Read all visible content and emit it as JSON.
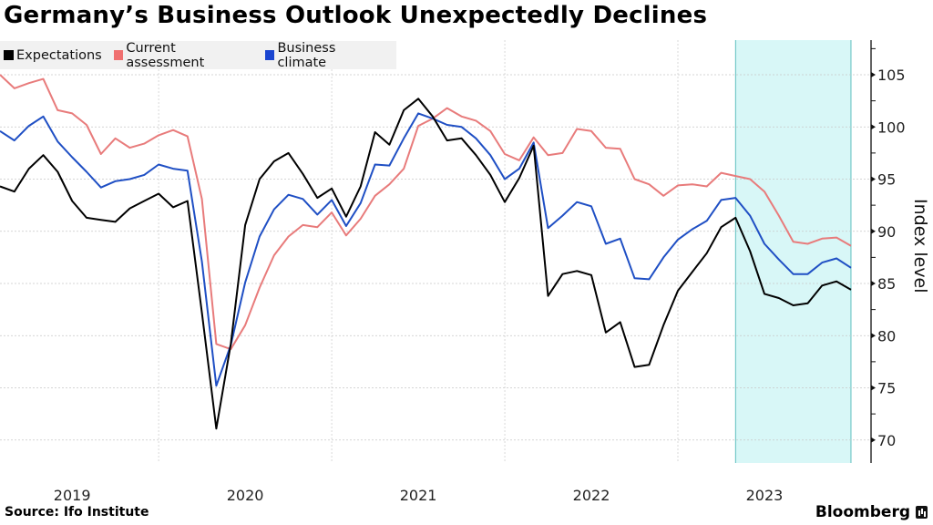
{
  "title": "Germany’s Business Outlook Unexpectedly Declines",
  "source": "Source: Ifo Institute",
  "brand": "Bloomberg",
  "chart_data": {
    "type": "line",
    "title": "Germany’s Business Outlook Unexpectedly Declines",
    "xlabel": "",
    "ylabel": "Index level",
    "x_start": "2019-01",
    "x_end": "2023-12",
    "frequency": "monthly",
    "x_tick_labels": [
      "2019",
      "2020",
      "2021",
      "2022",
      "2023"
    ],
    "y_ticks": [
      70,
      75,
      80,
      85,
      90,
      95,
      100,
      105
    ],
    "ylim": [
      68,
      108.3
    ],
    "grid": true,
    "legend_position": "top-left",
    "y_axis_side": "right",
    "highlight": {
      "from": "2023-04",
      "to": "2023-12",
      "color": "#d8f7f7"
    },
    "series": [
      {
        "name": "Expectations",
        "color": "#000000",
        "values": [
          94.3,
          93.8,
          96.0,
          97.3,
          95.7,
          92.9,
          91.3,
          91.1,
          90.9,
          92.2,
          92.9,
          93.6,
          92.3,
          92.9,
          82.2,
          71.1,
          79.2,
          90.6,
          95.0,
          96.7,
          97.5,
          95.5,
          93.2,
          94.1,
          91.4,
          94.3,
          99.5,
          98.3,
          101.6,
          102.7,
          101.0,
          98.7,
          98.9,
          97.3,
          95.4,
          92.8,
          95.1,
          98.2,
          83.8,
          85.9,
          86.2,
          85.8,
          80.3,
          81.3,
          77.0,
          77.2,
          81.0,
          84.3,
          86.1,
          87.9,
          90.4,
          91.3,
          88.1,
          84.0,
          83.6,
          82.9,
          83.1,
          84.8,
          85.2,
          84.4
        ]
      },
      {
        "name": "Current assessment",
        "color": "#e87b7b",
        "values": [
          105.0,
          103.7,
          104.2,
          104.6,
          101.6,
          101.3,
          100.2,
          97.4,
          98.9,
          98.0,
          98.4,
          99.2,
          99.7,
          99.1,
          93.1,
          79.2,
          78.7,
          81.0,
          84.6,
          87.7,
          89.5,
          90.6,
          90.4,
          91.8,
          89.6,
          91.2,
          93.4,
          94.5,
          96.0,
          100.1,
          100.8,
          101.8,
          101.0,
          100.6,
          99.6,
          97.4,
          96.8,
          99.0,
          97.3,
          97.5,
          99.8,
          99.6,
          98.0,
          97.9,
          95.0,
          94.5,
          93.4,
          94.4,
          94.5,
          94.3,
          95.6,
          95.3,
          95.0,
          93.8,
          91.5,
          89.0,
          88.8,
          89.3,
          89.4,
          88.6
        ]
      },
      {
        "name": "Business climate",
        "color": "#1f4fc4",
        "values": [
          99.6,
          98.7,
          100.1,
          101.0,
          98.6,
          97.1,
          95.7,
          94.2,
          94.8,
          95.0,
          95.4,
          96.4,
          96.0,
          95.8,
          87.1,
          75.2,
          79.1,
          85.1,
          89.5,
          92.1,
          93.5,
          93.1,
          91.6,
          93.0,
          90.5,
          92.7,
          96.4,
          96.3,
          98.9,
          101.3,
          100.8,
          100.2,
          100.0,
          98.9,
          97.3,
          95.0,
          96.0,
          98.5,
          90.3,
          91.5,
          92.8,
          92.4,
          88.8,
          89.3,
          85.5,
          85.4,
          87.5,
          89.2,
          90.2,
          91.0,
          93.0,
          93.2,
          91.5,
          88.8,
          87.3,
          85.9,
          85.9,
          87.0,
          87.4,
          86.5
        ]
      }
    ]
  },
  "legend": [
    {
      "label": "Expectations",
      "color": "#000000"
    },
    {
      "label": "Current assessment",
      "color": "#f07070"
    },
    {
      "label": "Business climate",
      "color": "#1a45d0"
    }
  ]
}
